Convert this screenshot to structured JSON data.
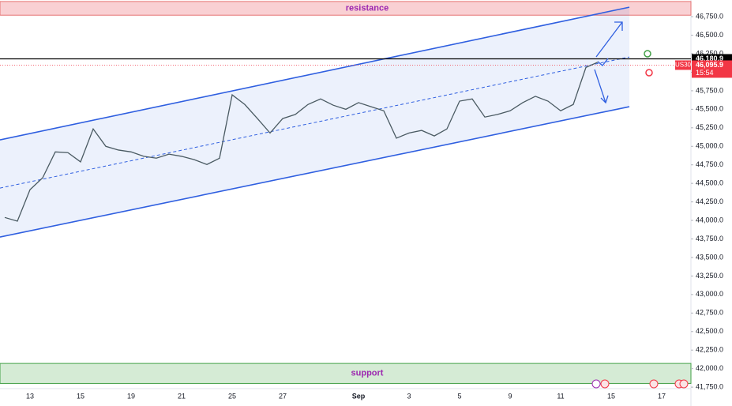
{
  "chart_data": {
    "type": "line",
    "color": "#4a5a62",
    "categories": [
      null,
      null,
      "13",
      null,
      null,
      null,
      "15",
      null,
      null,
      null,
      "19",
      null,
      null,
      null,
      "21",
      null,
      null,
      null,
      "25",
      null,
      null,
      null,
      "27",
      null,
      null,
      null,
      null,
      null,
      "Sep",
      null,
      null,
      null,
      "3",
      null,
      null,
      null,
      "5",
      null,
      null,
      null,
      "9",
      null,
      null,
      null,
      "11",
      null,
      null,
      null,
      "15",
      null,
      null,
      null,
      "17",
      null
    ],
    "values": [
      44040,
      43990,
      44415,
      44575,
      44925,
      44915,
      44790,
      45235,
      45000,
      44950,
      44925,
      44865,
      44840,
      44895,
      44865,
      44820,
      44755,
      44840,
      45695,
      45565,
      45375,
      45180,
      45375,
      45430,
      45565,
      45640,
      45555,
      45500,
      45590,
      45535,
      45480,
      45110,
      45180,
      45215,
      45140,
      45235,
      45610,
      45640,
      45395,
      45430,
      45480,
      45590,
      45675,
      45610,
      45480,
      45565,
      46065,
      46140,
      null,
      null,
      null,
      null,
      null,
      null
    ],
    "ylim": [
      41730,
      46975
    ],
    "yticks": [
      {
        "value": 41750,
        "label": "41,750.0"
      },
      {
        "value": 42000,
        "label": "42,000.0"
      },
      {
        "value": 42250,
        "label": "42,250.0"
      },
      {
        "value": 42500,
        "label": "42,500.0"
      },
      {
        "value": 42750,
        "label": "42,750.0"
      },
      {
        "value": 43000,
        "label": "43,000.0"
      },
      {
        "value": 43250,
        "label": "43,250.0"
      },
      {
        "value": 43500,
        "label": "43,500.0"
      },
      {
        "value": 43750,
        "label": "43,750.0"
      },
      {
        "value": 44000,
        "label": "44,000.0"
      },
      {
        "value": 44250,
        "label": "44,250.0"
      },
      {
        "value": 44500,
        "label": "44,500.0"
      },
      {
        "value": 44750,
        "label": "44,750.0"
      },
      {
        "value": 45000,
        "label": "45,000.0"
      },
      {
        "value": 45250,
        "label": "45,250.0"
      },
      {
        "value": 45500,
        "label": "45,500.0"
      },
      {
        "value": 45750,
        "label": "45,750.0"
      },
      {
        "value": 46000,
        "label": "46,000.0"
      },
      {
        "value": 46250,
        "label": "46,250.0"
      },
      {
        "value": 46500,
        "label": "46,500.0"
      },
      {
        "value": 46750,
        "label": "46,750.0"
      }
    ],
    "zones": [
      {
        "label": "resistance",
        "range": [
          46770,
          46955
        ],
        "fill": "#f9d0d3",
        "stroke": "#e57373"
      },
      {
        "label": "support",
        "range": [
          41800,
          42070
        ],
        "fill": "#d5ebd5",
        "stroke": "#43a047"
      }
    ],
    "channel": {
      "upper": [
        45087,
        46878
      ],
      "middle": [
        44437,
        46206
      ],
      "lower": [
        43776,
        45535
      ],
      "color": "#2f5fe0"
    },
    "price_lines": [
      {
        "value": 46180.9,
        "label": "46,180.9",
        "color": "#000000"
      },
      {
        "value": 46095.9,
        "label": "46,095.9",
        "color": "#f23645",
        "symbol": "US30",
        "time": "15:54"
      }
    ]
  }
}
